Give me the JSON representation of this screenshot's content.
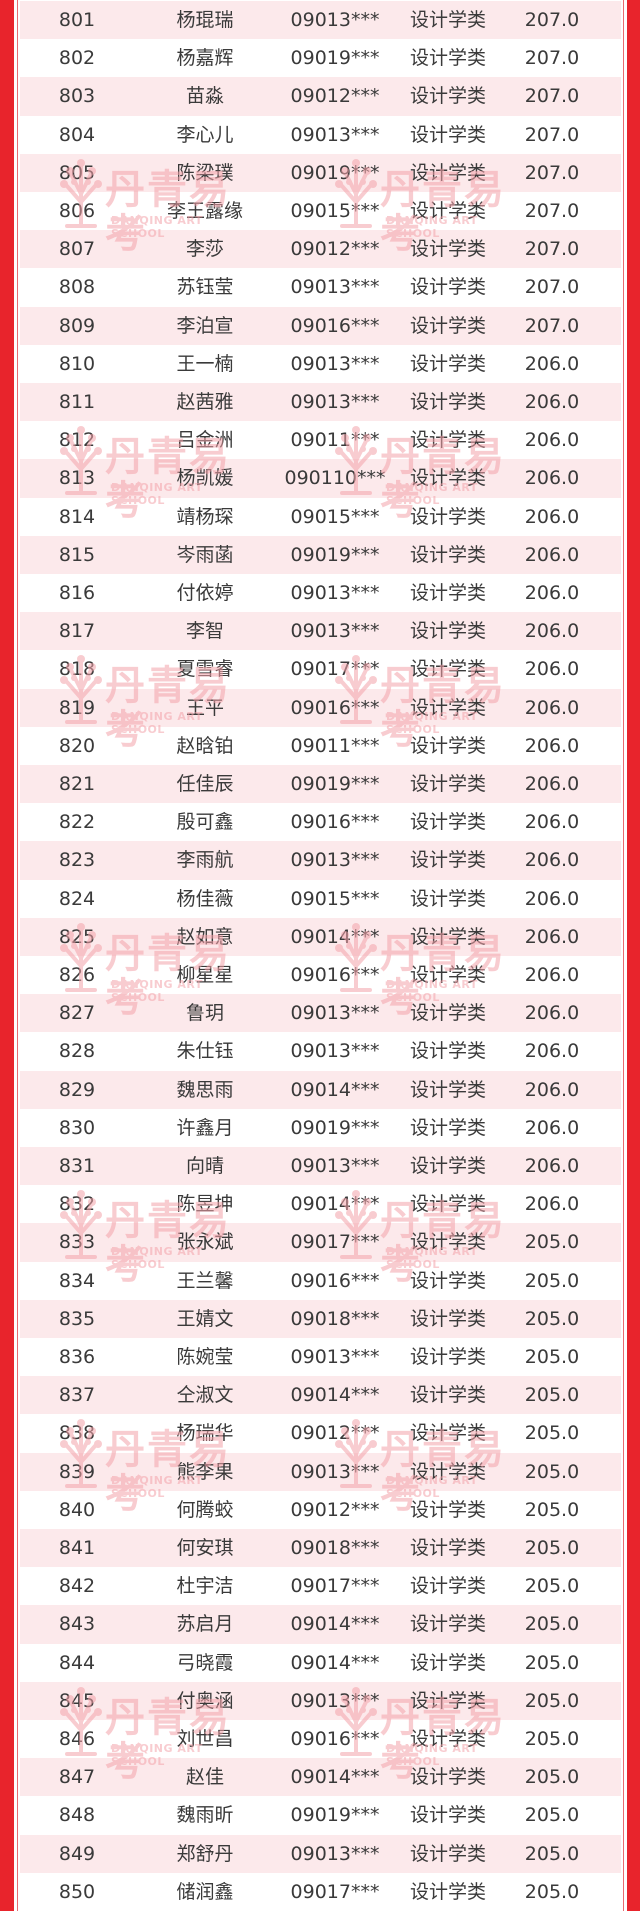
{
  "watermark": {
    "cn": "丹青易考",
    "en": "DANQING ART SCHOOL"
  },
  "colors": {
    "border": "#e8242c",
    "stripe": "#fce9eb",
    "watermark": "#f4a3aa"
  },
  "rows": [
    [
      "801",
      "杨琨瑞",
      "09013***",
      "设计学类",
      "207.0"
    ],
    [
      "802",
      "杨嘉辉",
      "09019***",
      "设计学类",
      "207.0"
    ],
    [
      "803",
      "苗淼",
      "09012***",
      "设计学类",
      "207.0"
    ],
    [
      "804",
      "李心儿",
      "09013***",
      "设计学类",
      "207.0"
    ],
    [
      "805",
      "陈梁璞",
      "09019***",
      "设计学类",
      "207.0"
    ],
    [
      "806",
      "李王露缘",
      "09015***",
      "设计学类",
      "207.0"
    ],
    [
      "807",
      "李莎",
      "09012***",
      "设计学类",
      "207.0"
    ],
    [
      "808",
      "苏钰莹",
      "09013***",
      "设计学类",
      "207.0"
    ],
    [
      "809",
      "李泊宣",
      "09016***",
      "设计学类",
      "207.0"
    ],
    [
      "810",
      "王一楠",
      "09013***",
      "设计学类",
      "206.0"
    ],
    [
      "811",
      "赵茜雅",
      "09013***",
      "设计学类",
      "206.0"
    ],
    [
      "812",
      "吕金洲",
      "09011***",
      "设计学类",
      "206.0"
    ],
    [
      "813",
      "杨凯媛",
      "090110***",
      "设计学类",
      "206.0"
    ],
    [
      "814",
      "靖杨琛",
      "09015***",
      "设计学类",
      "206.0"
    ],
    [
      "815",
      "岑雨菡",
      "09019***",
      "设计学类",
      "206.0"
    ],
    [
      "816",
      "付依婷",
      "09013***",
      "设计学类",
      "206.0"
    ],
    [
      "817",
      "李智",
      "09013***",
      "设计学类",
      "206.0"
    ],
    [
      "818",
      "夏雪睿",
      "09017***",
      "设计学类",
      "206.0"
    ],
    [
      "819",
      "王平",
      "09016***",
      "设计学类",
      "206.0"
    ],
    [
      "820",
      "赵晗铂",
      "09011***",
      "设计学类",
      "206.0"
    ],
    [
      "821",
      "任佳辰",
      "09019***",
      "设计学类",
      "206.0"
    ],
    [
      "822",
      "殷可鑫",
      "09016***",
      "设计学类",
      "206.0"
    ],
    [
      "823",
      "李雨航",
      "09013***",
      "设计学类",
      "206.0"
    ],
    [
      "824",
      "杨佳薇",
      "09015***",
      "设计学类",
      "206.0"
    ],
    [
      "825",
      "赵如意",
      "09014***",
      "设计学类",
      "206.0"
    ],
    [
      "826",
      "柳星星",
      "09016***",
      "设计学类",
      "206.0"
    ],
    [
      "827",
      "鲁玥",
      "09013***",
      "设计学类",
      "206.0"
    ],
    [
      "828",
      "朱仕钰",
      "09013***",
      "设计学类",
      "206.0"
    ],
    [
      "829",
      "魏思雨",
      "09014***",
      "设计学类",
      "206.0"
    ],
    [
      "830",
      "许鑫月",
      "09019***",
      "设计学类",
      "206.0"
    ],
    [
      "831",
      "向晴",
      "09013***",
      "设计学类",
      "206.0"
    ],
    [
      "832",
      "陈昱坤",
      "09014***",
      "设计学类",
      "206.0"
    ],
    [
      "833",
      "张永斌",
      "09017***",
      "设计学类",
      "205.0"
    ],
    [
      "834",
      "王兰馨",
      "09016***",
      "设计学类",
      "205.0"
    ],
    [
      "835",
      "王婧文",
      "09018***",
      "设计学类",
      "205.0"
    ],
    [
      "836",
      "陈婉莹",
      "09013***",
      "设计学类",
      "205.0"
    ],
    [
      "837",
      "仝淑文",
      "09014***",
      "设计学类",
      "205.0"
    ],
    [
      "838",
      "杨瑞华",
      "09012***",
      "设计学类",
      "205.0"
    ],
    [
      "839",
      "熊李果",
      "09013***",
      "设计学类",
      "205.0"
    ],
    [
      "840",
      "何腾蛟",
      "09012***",
      "设计学类",
      "205.0"
    ],
    [
      "841",
      "何安琪",
      "09018***",
      "设计学类",
      "205.0"
    ],
    [
      "842",
      "杜宇洁",
      "09017***",
      "设计学类",
      "205.0"
    ],
    [
      "843",
      "苏启月",
      "09014***",
      "设计学类",
      "205.0"
    ],
    [
      "844",
      "弓晓霞",
      "09014***",
      "设计学类",
      "205.0"
    ],
    [
      "845",
      "付奥涵",
      "09013***",
      "设计学类",
      "205.0"
    ],
    [
      "846",
      "刘世昌",
      "09016***",
      "设计学类",
      "205.0"
    ],
    [
      "847",
      "赵佳",
      "09014***",
      "设计学类",
      "205.0"
    ],
    [
      "848",
      "魏雨昕",
      "09019***",
      "设计学类",
      "205.0"
    ],
    [
      "849",
      "郑舒丹",
      "09013***",
      "设计学类",
      "205.0"
    ],
    [
      "850",
      "储润鑫",
      "09017***",
      "设计学类",
      "205.0"
    ]
  ]
}
